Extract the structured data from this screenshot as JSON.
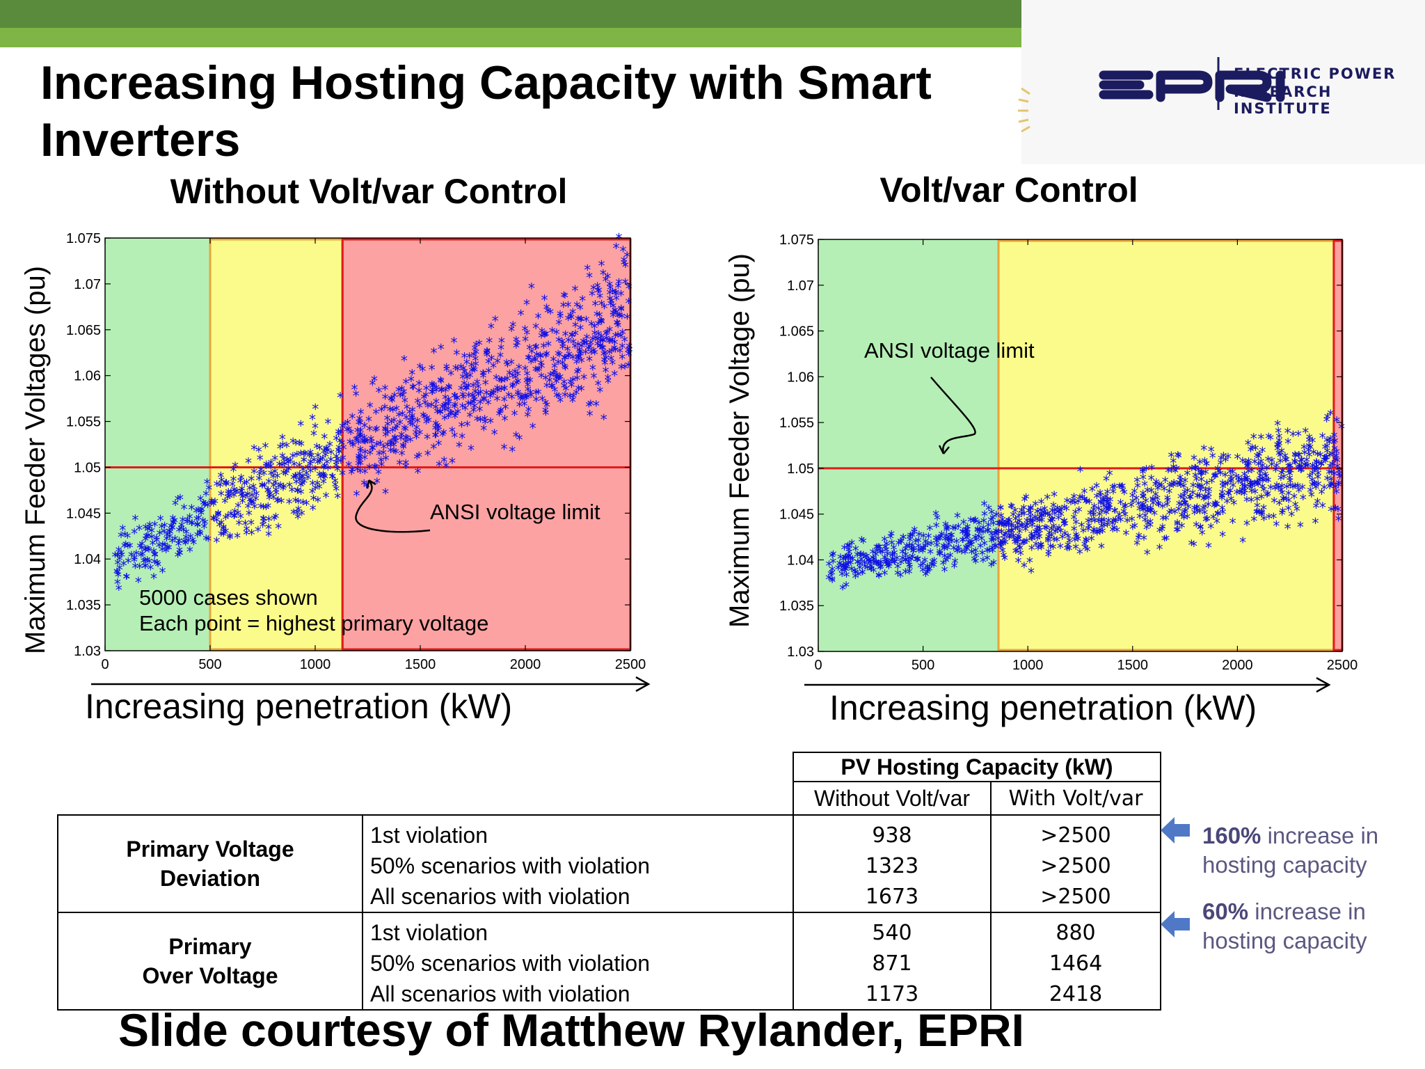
{
  "slide": {
    "title": "Increasing Hosting Capacity with Smart Inverters",
    "footer": "Slide courtesy of Matthew Rylander, EPRI",
    "colors": {
      "band_dark": "#5a8a3c",
      "band_light": "#7fb446",
      "scatter": "#1010e6",
      "limit_line": "#e21b1b"
    }
  },
  "logo": {
    "mark": "EPRI",
    "name_line1": "ELECTRIC POWER",
    "name_line2": "RESEARCH INSTITUTE",
    "icon": "sun-rays-icon"
  },
  "chart_data": [
    {
      "type": "scatter",
      "title": "Without Volt/var Control",
      "xlabel": "Increasing penetration (kW)",
      "ylabel": "Maximum Feeder Voltages (pu)",
      "xlim": [
        0,
        2500
      ],
      "ylim": [
        1.03,
        1.075
      ],
      "xticks": [
        "0",
        "500",
        "1000",
        "1500",
        "2000",
        "2500"
      ],
      "yticks": [
        "1.03",
        "1.035",
        "1.04",
        "1.045",
        "1.05",
        "1.055",
        "1.06",
        "1.065",
        "1.07",
        "1.075"
      ],
      "zones": [
        {
          "from": 0,
          "to": 500,
          "color": "#b5efb5"
        },
        {
          "from": 500,
          "to": 1130,
          "color": "#fbfb8c"
        },
        {
          "from": 1130,
          "to": 2500,
          "color": "#fca2a2"
        }
      ],
      "limit_y": 1.05,
      "annotations": [
        "ANSI voltage limit",
        "5000 cases shown",
        "Each point  = highest primary voltage"
      ],
      "points": {
        "count": 5000,
        "x_range": [
          50,
          2500
        ],
        "y_at_min_x": 1.0395,
        "y_at_max_x": 1.0665,
        "spread": 0.004
      }
    },
    {
      "type": "scatter",
      "title": "Volt/var Control",
      "xlabel": "Increasing penetration (kW)",
      "ylabel": "Maximum Feeder Voltage (pu)",
      "xlim": [
        0,
        2500
      ],
      "ylim": [
        1.03,
        1.075
      ],
      "xticks": [
        "0",
        "500",
        "1000",
        "1500",
        "2000",
        "2500"
      ],
      "yticks": [
        "1.03",
        "1.035",
        "1.04",
        "1.045",
        "1.05",
        "1.055",
        "1.06",
        "1.065",
        "1.07",
        "1.075"
      ],
      "zones": [
        {
          "from": 0,
          "to": 860,
          "color": "#b5efb5"
        },
        {
          "from": 860,
          "to": 2460,
          "color": "#fbfb8c"
        },
        {
          "from": 2460,
          "to": 2500,
          "color": "#fca2a2"
        }
      ],
      "limit_y": 1.05,
      "annotations": [
        "ANSI voltage limit"
      ],
      "points": {
        "count": 5000,
        "x_range": [
          50,
          2500
        ],
        "y_at_min_x": 1.0389,
        "y_at_max_x": 1.0505,
        "spread": 0.0028
      }
    }
  ],
  "table": {
    "header": "PV Hosting Capacity (kW)",
    "columns": [
      "Without Volt/var",
      "With Volt/var"
    ],
    "groups": [
      {
        "name": "Primary Voltage Deviation",
        "rows": [
          {
            "label": "1st violation",
            "without": "938",
            "with": ">2500"
          },
          {
            "label": "50% scenarios with violation",
            "without": "1323",
            "with": ">2500"
          },
          {
            "label": "All scenarios with violation",
            "without": "1673",
            "with": ">2500"
          }
        ]
      },
      {
        "name": "Primary Over Voltage",
        "rows": [
          {
            "label": "1st violation",
            "without": "540",
            "with": "880"
          },
          {
            "label": "50% scenarios with violation",
            "without": "871",
            "with": "1464"
          },
          {
            "label": "All scenarios with violation",
            "without": "1173",
            "with": "2418"
          }
        ]
      }
    ]
  },
  "notes": [
    {
      "pct": "160%",
      "line1": " increase in",
      "line2": "hosting capacity"
    },
    {
      "pct": "60%",
      "line1": " increase in",
      "line2": "hosting capacity"
    }
  ]
}
